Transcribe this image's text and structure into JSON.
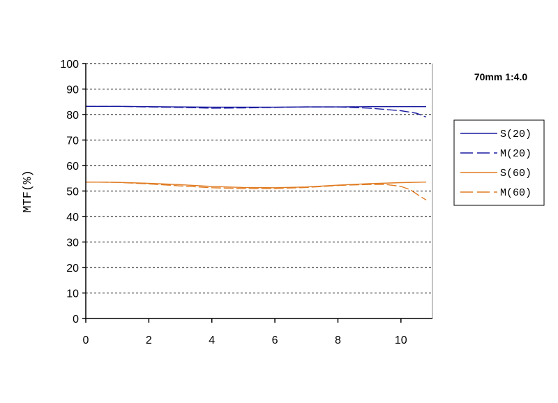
{
  "chart_data": {
    "type": "line",
    "title": "70mm 1:4.0",
    "xlabel": "",
    "ylabel": "MTF(%)",
    "xlim": [
      0,
      11
    ],
    "ylim": [
      0,
      100
    ],
    "xticks": [
      0,
      2,
      4,
      6,
      8,
      10
    ],
    "yticks": [
      0,
      10,
      20,
      30,
      40,
      50,
      60,
      70,
      80,
      90,
      100
    ],
    "grid": "horizontal dashed",
    "legend_position": "right",
    "series": [
      {
        "name": "S(20)",
        "color": "#1a1aa0",
        "style": "solid",
        "x": [
          0,
          1,
          2,
          3,
          4,
          5,
          6,
          7,
          8,
          9,
          10,
          10.8
        ],
        "y": [
          83.2,
          83.2,
          83.1,
          83.0,
          82.9,
          82.9,
          82.9,
          83.0,
          83.0,
          83.1,
          83.1,
          83.1
        ]
      },
      {
        "name": "M(20)",
        "color": "#1a1aa0",
        "style": "dashed",
        "x": [
          0,
          1,
          2,
          3,
          4,
          5,
          6,
          7,
          8,
          9,
          9.5,
          10,
          10.5,
          10.8
        ],
        "y": [
          83.2,
          83.2,
          83.0,
          82.8,
          82.5,
          82.6,
          82.8,
          83.0,
          83.0,
          82.5,
          82.0,
          81.5,
          80.5,
          79.0
        ]
      },
      {
        "name": "S(60)",
        "color": "#e07a20",
        "style": "solid",
        "x": [
          0,
          1,
          2,
          3,
          4,
          5,
          6,
          7,
          8,
          9,
          10,
          10.8
        ],
        "y": [
          53.5,
          53.4,
          53.0,
          52.5,
          51.8,
          51.4,
          51.3,
          51.6,
          52.3,
          52.9,
          53.3,
          53.5
        ]
      },
      {
        "name": "M(60)",
        "color": "#e07a20",
        "style": "dashed",
        "x": [
          0,
          1,
          2,
          3,
          4,
          5,
          6,
          7,
          8,
          9,
          9.5,
          10,
          10.3,
          10.6,
          10.8
        ],
        "y": [
          53.5,
          53.4,
          52.8,
          52.0,
          51.3,
          51.0,
          51.0,
          51.4,
          52.2,
          52.6,
          52.6,
          51.8,
          50.5,
          48.0,
          46.5
        ]
      }
    ]
  }
}
